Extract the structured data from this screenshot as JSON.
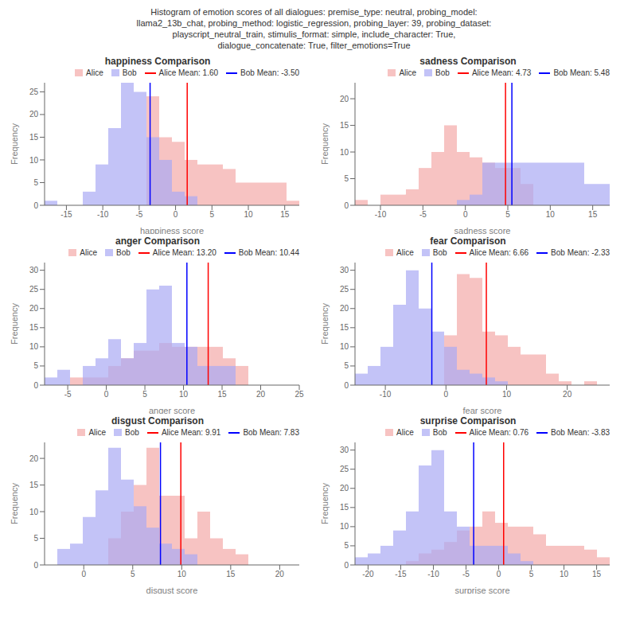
{
  "title": "Histogram of emotion scores of all dialogues: premise_type: neutral, probing_model:\nllama2_13b_chat, probing_method: logistic_regression, probing_layer: 39, probing_dataset:\nplayscript_neutral_train, stimulis_format: simple, include_character: True,\ndialogue_concatenate: True, filter_emotions=True",
  "chart_data": [
    {
      "type": "histogram",
      "title": "happiness Comparison",
      "x_label": "happiness score",
      "y_label": "Frequency",
      "bins": [
        -18,
        -16.25,
        -14.5,
        -12.75,
        -11,
        -9.25,
        -7.5,
        -5.75,
        -4,
        -2.25,
        -0.5,
        1.25,
        3,
        4.75,
        6.5,
        8.25,
        10,
        11.75,
        13.5,
        15.25,
        17
      ],
      "series": [
        {
          "name": "Alice",
          "color": "#f4a9a8",
          "values": [
            0,
            0,
            0,
            0,
            0,
            0,
            0,
            0,
            24,
            15,
            14,
            10,
            9,
            9,
            8,
            5,
            5,
            5,
            5,
            1
          ]
        },
        {
          "name": "Bob",
          "color": "#a9a9f4",
          "values": [
            1,
            0,
            0,
            3,
            9,
            17,
            27,
            25,
            15,
            10,
            3,
            2,
            0,
            0,
            0,
            0,
            0,
            0,
            0,
            0
          ]
        }
      ],
      "mean_lines": [
        {
          "name": "Alice Mean: 1.60",
          "value": 1.6,
          "color": "red"
        },
        {
          "name": "Bob Mean: -3.50",
          "value": -3.5,
          "color": "blue"
        }
      ],
      "xlim": [
        -18,
        17
      ],
      "ylim": [
        0,
        27
      ],
      "xticks": [
        -15,
        -10,
        -5,
        0,
        5,
        10,
        15
      ],
      "yticks": [
        0,
        5,
        10,
        15,
        20,
        25
      ],
      "legend": "upper right"
    },
    {
      "type": "histogram",
      "title": "sadness Comparison",
      "x_label": "sadness score",
      "y_label": "Frequency",
      "bins": [
        -13,
        -11.5,
        -10,
        -8.5,
        -7,
        -5.5,
        -4,
        -2.5,
        -1,
        0.5,
        2,
        3.5,
        5,
        6.5,
        8,
        9.5,
        11,
        12.5,
        14,
        15.5,
        17
      ],
      "series": [
        {
          "name": "Alice",
          "color": "#f4a9a8",
          "values": [
            1,
            0,
            2,
            2,
            3,
            7,
            10,
            15,
            10,
            9,
            8,
            7,
            7,
            4,
            0,
            0,
            0,
            0,
            0,
            0
          ]
        },
        {
          "name": "Bob",
          "color": "#a9a9f4",
          "values": [
            0,
            0,
            0,
            0,
            0,
            0,
            0,
            0,
            1,
            2,
            8,
            8,
            8,
            8,
            8,
            8,
            8,
            8,
            4,
            4
          ]
        }
      ],
      "mean_lines": [
        {
          "name": "Alice Mean: 4.73",
          "value": 4.73,
          "color": "red"
        },
        {
          "name": "Bob Mean: 5.48",
          "value": 5.48,
          "color": "blue"
        }
      ],
      "xlim": [
        -13,
        17
      ],
      "ylim": [
        0,
        23
      ],
      "xticks": [
        -10,
        -5,
        0,
        5,
        10,
        15
      ],
      "yticks": [
        0,
        5,
        10,
        15,
        20
      ],
      "legend": "upper right"
    },
    {
      "type": "histogram",
      "title": "anger Comparison",
      "x_label": "anger score",
      "y_label": "Frequency",
      "bins": [
        -8,
        -6.35,
        -4.7,
        -3.05,
        -1.4,
        0.25,
        1.9,
        3.55,
        5.2,
        6.85,
        8.5,
        10.15,
        11.8,
        13.45,
        15.1,
        16.75,
        18.4,
        20.05,
        21.7,
        23.35,
        25
      ],
      "series": [
        {
          "name": "Alice",
          "color": "#f4a9a8",
          "values": [
            0,
            0,
            2,
            2,
            2,
            5,
            7,
            9,
            9,
            11,
            10,
            10,
            10,
            10,
            7,
            5,
            0,
            0,
            0,
            0
          ]
        },
        {
          "name": "Bob",
          "color": "#a9a9f4",
          "values": [
            2,
            4,
            0,
            5,
            7,
            12,
            7,
            11,
            25,
            26,
            11,
            10,
            5,
            5,
            5,
            0,
            0,
            0,
            0,
            0
          ]
        }
      ],
      "mean_lines": [
        {
          "name": "Alice Mean: 13.20",
          "value": 13.2,
          "color": "red"
        },
        {
          "name": "Bob Mean: 10.44",
          "value": 10.44,
          "color": "blue"
        }
      ],
      "xlim": [
        -8,
        25
      ],
      "ylim": [
        0,
        32
      ],
      "xticks": [
        -5,
        0,
        5,
        10,
        15,
        20,
        25
      ],
      "yticks": [
        0,
        5,
        10,
        15,
        20,
        25,
        30
      ],
      "legend": "upper right"
    },
    {
      "type": "histogram",
      "title": "fear Comparison",
      "x_label": "fear score",
      "y_label": "Frequency",
      "bins": [
        -15,
        -12.9,
        -10.8,
        -8.7,
        -6.6,
        -4.5,
        -2.4,
        -0.3,
        1.8,
        3.9,
        6,
        8.1,
        10.2,
        12.3,
        14.4,
        16.5,
        18.6,
        20.7,
        22.8,
        24.9,
        27
      ],
      "series": [
        {
          "name": "Alice",
          "color": "#f4a9a8",
          "values": [
            0,
            0,
            0,
            0,
            0,
            0,
            0,
            13,
            29,
            28,
            14,
            13,
            10,
            8,
            8,
            3,
            1,
            0,
            1,
            0
          ]
        },
        {
          "name": "Bob",
          "color": "#a9a9f4",
          "values": [
            3,
            5,
            10,
            21,
            30,
            20,
            14,
            10,
            4,
            3,
            2,
            1,
            0,
            0,
            0,
            0,
            0,
            0,
            0,
            0
          ]
        }
      ],
      "mean_lines": [
        {
          "name": "Alice Mean: 6.66",
          "value": 6.66,
          "color": "red"
        },
        {
          "name": "Bob Mean: -2.33",
          "value": -2.33,
          "color": "blue"
        }
      ],
      "xlim": [
        -15,
        27
      ],
      "ylim": [
        0,
        32
      ],
      "xticks": [
        -10,
        0,
        10,
        20
      ],
      "yticks": [
        0,
        5,
        10,
        15,
        20,
        25,
        30
      ],
      "legend": "upper right"
    },
    {
      "type": "histogram",
      "title": "disgust Comparison",
      "x_label": "disgust score",
      "y_label": "Frequency",
      "bins": [
        -4,
        -2.7,
        -1.4,
        -0.1,
        1.2,
        2.5,
        3.8,
        5.1,
        6.4,
        7.7,
        9,
        10.3,
        11.6,
        12.9,
        14.2,
        15.5,
        16.8,
        18.1,
        19.4,
        20.7,
        22
      ],
      "series": [
        {
          "name": "Alice",
          "color": "#f4a9a8",
          "values": [
            0,
            0,
            0,
            0,
            0,
            5,
            10,
            15,
            22,
            13,
            13,
            5,
            10,
            5,
            3,
            2,
            0,
            0,
            0,
            0
          ]
        },
        {
          "name": "Bob",
          "color": "#a9a9f4",
          "values": [
            0,
            3,
            4,
            9,
            14,
            22,
            16,
            11,
            7,
            4,
            3,
            2,
            0,
            0,
            0,
            0,
            0,
            0,
            0,
            0
          ]
        }
      ],
      "mean_lines": [
        {
          "name": "Alice Mean: 9.91",
          "value": 9.91,
          "color": "red"
        },
        {
          "name": "Bob Mean: 7.83",
          "value": 7.83,
          "color": "blue"
        }
      ],
      "xlim": [
        -4,
        22
      ],
      "ylim": [
        0,
        23
      ],
      "xticks": [
        0,
        5,
        10,
        15,
        20
      ],
      "yticks": [
        0,
        5,
        10,
        15,
        20
      ],
      "legend": "upper right"
    },
    {
      "type": "histogram",
      "title": "surprise Comparison",
      "x_label": "surprise score",
      "y_label": "Frequency",
      "bins": [
        -22,
        -20.05,
        -18.1,
        -16.15,
        -14.2,
        -12.25,
        -10.3,
        -8.35,
        -6.4,
        -4.45,
        -2.5,
        -0.55,
        1.4,
        3.35,
        5.3,
        7.25,
        9.2,
        11.15,
        13.1,
        15.05,
        17
      ],
      "series": [
        {
          "name": "Alice",
          "color": "#f4a9a8",
          "values": [
            0,
            0,
            0,
            0,
            1,
            3,
            4,
            6,
            9,
            10,
            14,
            11,
            10,
            10,
            8,
            5,
            5,
            5,
            4,
            2
          ]
        },
        {
          "name": "Bob",
          "color": "#a9a9f4",
          "values": [
            2,
            3,
            5,
            9,
            14,
            26,
            30,
            14,
            10,
            5,
            5,
            5,
            3,
            1,
            0,
            0,
            0,
            0,
            0,
            0
          ]
        }
      ],
      "mean_lines": [
        {
          "name": "Alice Mean: 0.76",
          "value": 0.76,
          "color": "red"
        },
        {
          "name": "Bob Mean: -3.83",
          "value": -3.83,
          "color": "blue"
        }
      ],
      "xlim": [
        -22,
        17
      ],
      "ylim": [
        0,
        32
      ],
      "xticks": [
        -20,
        -15,
        -10,
        -5,
        0,
        5,
        10,
        15
      ],
      "yticks": [
        0,
        5,
        10,
        15,
        20,
        25,
        30
      ],
      "legend": "upper right"
    }
  ]
}
